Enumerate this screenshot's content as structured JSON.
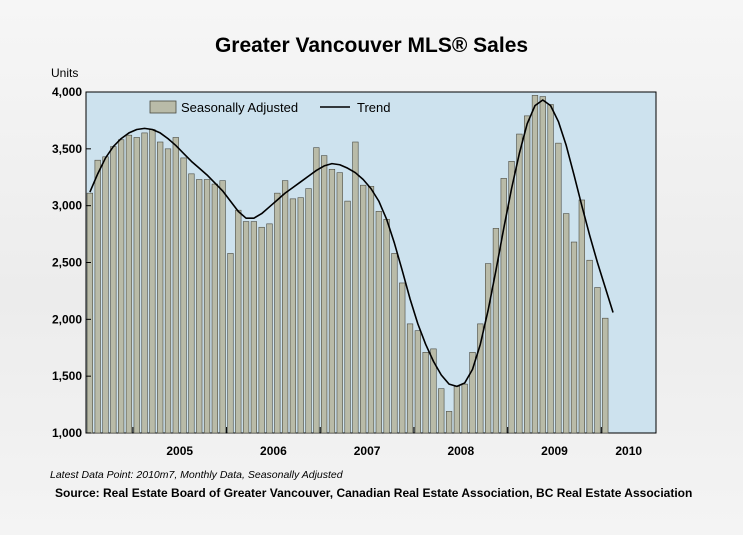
{
  "title": "Greater Vancouver MLS® Sales",
  "units_label": "Units",
  "footnote": "Latest Data Point: 2010m7, Monthly Data, Seasonally Adjusted",
  "source": "Source: Real Estate Board of Greater Vancouver, Canadian Real Estate Association, BC Real Estate Association",
  "colors": {
    "plot_background": "#cde2ee",
    "bar_fill": "#b9bba8",
    "bar_stroke": "#4a4a40",
    "trend_line": "#000000"
  },
  "chart_data": {
    "type": "bar",
    "title": "Greater Vancouver MLS® Sales",
    "ylabel": "Units",
    "ylim": [
      1000,
      4000
    ],
    "yticks": [
      "1,000",
      "1,500",
      "2,000",
      "2,500",
      "3,000",
      "3,500",
      "4,000"
    ],
    "ytick_values": [
      1000,
      1500,
      2000,
      2500,
      3000,
      3500,
      4000
    ],
    "year_labels": [
      "2005",
      "2006",
      "2007",
      "2008",
      "2009",
      "2010"
    ],
    "grid": false,
    "legend_position": "top-left",
    "x": [
      "2004m7",
      "2004m8",
      "2004m9",
      "2004m10",
      "2004m11",
      "2004m12",
      "2005m1",
      "2005m2",
      "2005m3",
      "2005m4",
      "2005m5",
      "2005m6",
      "2005m7",
      "2005m8",
      "2005m9",
      "2005m10",
      "2005m11",
      "2005m12",
      "2006m1",
      "2006m2",
      "2006m3",
      "2006m4",
      "2006m5",
      "2006m6",
      "2006m7",
      "2006m8",
      "2006m9",
      "2006m10",
      "2006m11",
      "2006m12",
      "2007m1",
      "2007m2",
      "2007m3",
      "2007m4",
      "2007m5",
      "2007m6",
      "2007m7",
      "2007m8",
      "2007m9",
      "2007m10",
      "2007m11",
      "2007m12",
      "2008m1",
      "2008m2",
      "2008m3",
      "2008m4",
      "2008m5",
      "2008m6",
      "2008m7",
      "2008m8",
      "2008m9",
      "2008m10",
      "2008m11",
      "2008m12",
      "2009m1",
      "2009m2",
      "2009m3",
      "2009m4",
      "2009m5",
      "2009m6",
      "2009m7",
      "2009m8",
      "2009m9",
      "2009m10",
      "2009m11",
      "2009m12",
      "2010m1",
      "2010m2",
      "2010m3",
      "2010m4",
      "2010m5",
      "2010m6",
      "2010m7"
    ],
    "series": [
      {
        "name": "Seasonally Adjusted",
        "kind": "bar",
        "values": [
          3110,
          3400,
          3430,
          3520,
          3580,
          3620,
          3600,
          3640,
          3670,
          3560,
          3500,
          3600,
          3420,
          3280,
          3230,
          3230,
          3190,
          3220,
          2580,
          2960,
          2860,
          2860,
          2810,
          2840,
          3110,
          3220,
          3060,
          3070,
          3150,
          3510,
          3440,
          3320,
          3290,
          3040,
          3560,
          3180,
          3170,
          2950,
          2880,
          2580,
          2320,
          1960,
          1900,
          1710,
          1740,
          1390,
          1190,
          1410,
          1430,
          1710,
          1960,
          2490,
          2800,
          3240,
          3390,
          3630,
          3790,
          3970,
          3960,
          3890,
          3550,
          2930,
          2680,
          3050,
          2520,
          2280,
          2010,
          null,
          null,
          null,
          null,
          null,
          null
        ]
      },
      {
        "name": "Trend",
        "kind": "line",
        "values": [
          3120,
          3280,
          3420,
          3520,
          3590,
          3640,
          3670,
          3680,
          3670,
          3640,
          3590,
          3530,
          3460,
          3390,
          3330,
          3270,
          3200,
          3130,
          3040,
          2950,
          2890,
          2890,
          2930,
          2990,
          3050,
          3110,
          3160,
          3210,
          3260,
          3310,
          3350,
          3370,
          3360,
          3330,
          3290,
          3230,
          3150,
          3040,
          2880,
          2670,
          2430,
          2180,
          1960,
          1780,
          1630,
          1510,
          1430,
          1410,
          1440,
          1560,
          1780,
          2080,
          2430,
          2800,
          3150,
          3460,
          3720,
          3880,
          3930,
          3880,
          3740,
          3530,
          3270,
          3000,
          2740,
          2500,
          2280,
          2060,
          null,
          null,
          null,
          null,
          null
        ]
      }
    ]
  }
}
